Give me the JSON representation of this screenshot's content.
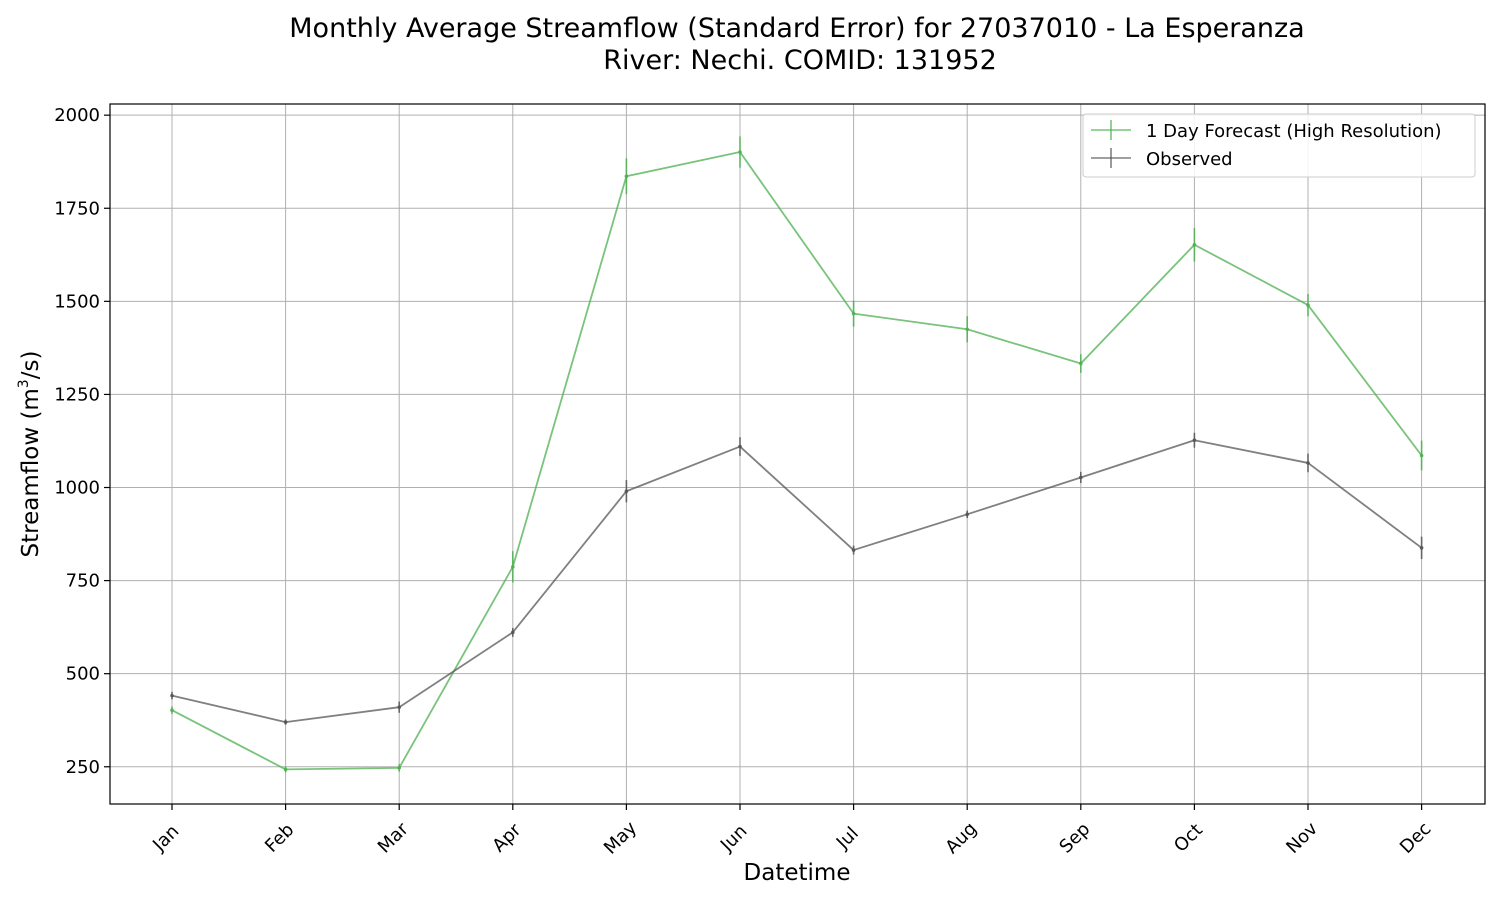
{
  "chart_data": {
    "type": "line",
    "title": "Monthly Average Streamflow (Standard Error) for 27037010 - La Esperanza",
    "subtitle": "River: Nechi. COMID: 131952",
    "xlabel": "Datetime",
    "ylabel": "Streamflow (m³/s)",
    "ylabel_main": "Streamflow (m",
    "ylabel_sup": "3",
    "ylabel_tail": "/s)",
    "categories": [
      "Jan",
      "Feb",
      "Mar",
      "Apr",
      "May",
      "Jun",
      "Jul",
      "Aug",
      "Sep",
      "Oct",
      "Nov",
      "Dec"
    ],
    "ylim": [
      150,
      2030
    ],
    "yticks": [
      250,
      500,
      750,
      1000,
      1250,
      1500,
      1750,
      2000
    ],
    "grid": true,
    "legend_position": "top-right",
    "series": [
      {
        "name": "1 Day Forecast (High Resolution)",
        "color": "#4caf50",
        "values": [
          402,
          243,
          247,
          787,
          1836,
          1901,
          1467,
          1425,
          1333,
          1652,
          1490,
          1086
        ],
        "errors": [
          10,
          8,
          10,
          42,
          48,
          42,
          35,
          35,
          25,
          45,
          30,
          40
        ]
      },
      {
        "name": "Observed",
        "color": "#555555",
        "values": [
          441,
          370,
          410,
          611,
          990,
          1110,
          832,
          928,
          1027,
          1127,
          1066,
          838
        ],
        "errors": [
          10,
          7,
          15,
          12,
          30,
          25,
          12,
          10,
          15,
          20,
          25,
          30
        ]
      }
    ]
  }
}
